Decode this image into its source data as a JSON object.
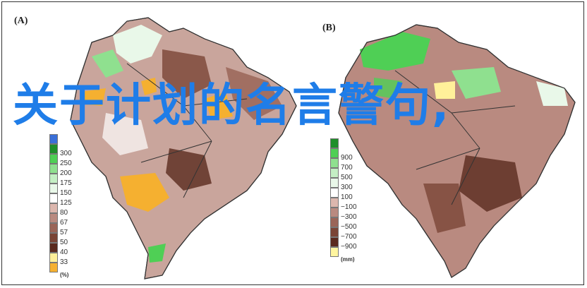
{
  "panels": [
    {
      "label": "(A)",
      "legend": {
        "unit": "(%)",
        "labels": [
          "300",
          "250",
          "200",
          "175",
          "150",
          "125",
          "80",
          "67",
          "57",
          "50",
          "40",
          "33"
        ],
        "colors": [
          "#3a6fd8",
          "#1f8f2a",
          "#4fcf55",
          "#8fe08f",
          "#c4efc4",
          "#e9f8e9",
          "#ffffff",
          "#dcb7ae",
          "#b98a80",
          "#9a6558",
          "#7a4536",
          "#5a2a1e",
          "#fff09a",
          "#f5b030"
        ]
      }
    },
    {
      "label": "(B)",
      "legend": {
        "unit": "(mm)",
        "labels": [
          "900",
          "700",
          "500",
          "300",
          "100",
          "−100",
          "−300",
          "−500",
          "−700",
          "−900"
        ],
        "colors": [
          "#1f8f2a",
          "#4fcf55",
          "#8fe08f",
          "#c4efc4",
          "#e9f8e9",
          "#ffffff",
          "#dcb7ae",
          "#b98a80",
          "#9a6558",
          "#7a4536",
          "#5a2a1e",
          "#fff6a0"
        ]
      }
    }
  ],
  "overlay_text": "关于计划的名言警句,",
  "colors": {
    "overlay": "#1f7de8",
    "border": "#222222"
  }
}
